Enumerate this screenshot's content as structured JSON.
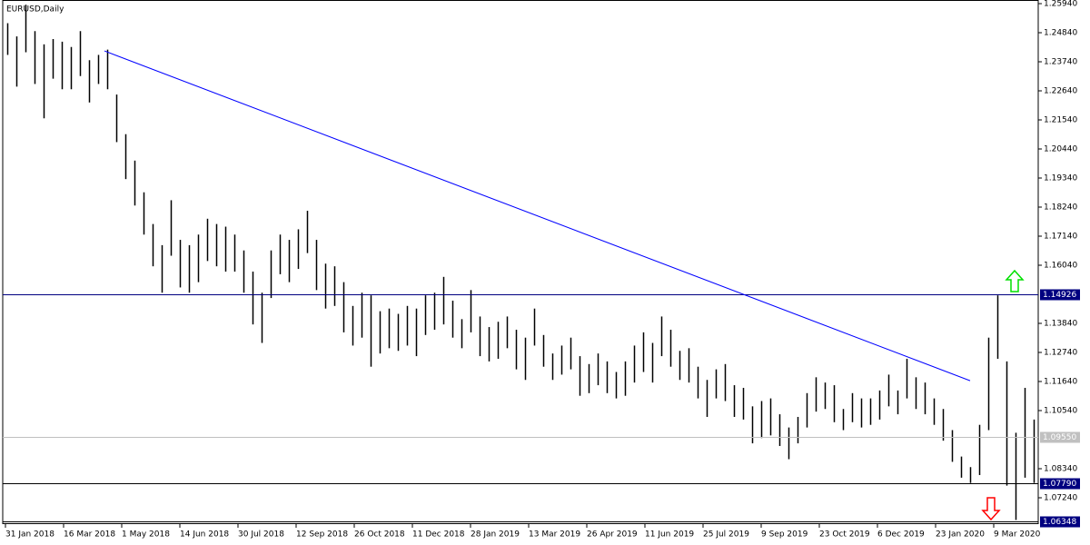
{
  "chart_data": {
    "type": "ohlc",
    "title": "EURUSD,Daily",
    "xlim": [
      0,
      114
    ],
    "xticks": [
      {
        "value": 0.3,
        "label": "31 Jan 2018"
      },
      {
        "value": 6.7,
        "label": "16 Mar 2018"
      },
      {
        "value": 13.1,
        "label": "1 May 2018"
      },
      {
        "value": 19.5,
        "label": "14 Jun 2018"
      },
      {
        "value": 25.9,
        "label": "30 Jul 2018"
      },
      {
        "value": 32.3,
        "label": "12 Sep 2018"
      },
      {
        "value": 38.7,
        "label": "26 Oct 2018"
      },
      {
        "value": 45.1,
        "label": "11 Dec 2018"
      },
      {
        "value": 51.5,
        "label": "28 Jan 2019"
      },
      {
        "value": 57.9,
        "label": "13 Mar 2019"
      },
      {
        "value": 64.3,
        "label": "26 Apr 2019"
      },
      {
        "value": 70.7,
        "label": "11 Jun 2019"
      },
      {
        "value": 77.1,
        "label": "25 Jul 2019"
      },
      {
        "value": 83.5,
        "label": "9 Sep 2019"
      },
      {
        "value": 89.9,
        "label": "23 Oct 2019"
      },
      {
        "value": 96.3,
        "label": "6 Dec 2019"
      },
      {
        "value": 102.7,
        "label": "23 Jan 2020"
      },
      {
        "value": 109.1,
        "label": "9 Mar 2020"
      }
    ],
    "ylim": [
      1.06243,
      1.26078
    ],
    "yticks": [
      {
        "value": 1.2594,
        "label": "1.25940"
      },
      {
        "value": 1.2484,
        "label": "1.24840"
      },
      {
        "value": 1.2374,
        "label": "1.23740"
      },
      {
        "value": 1.2264,
        "label": "1.22640"
      },
      {
        "value": 1.2154,
        "label": "1.21540"
      },
      {
        "value": 1.2044,
        "label": "1.20440"
      },
      {
        "value": 1.1934,
        "label": "1.19340"
      },
      {
        "value": 1.1824,
        "label": "1.18240"
      },
      {
        "value": 1.1714,
        "label": "1.17140"
      },
      {
        "value": 1.1604,
        "label": "1.16040"
      },
      {
        "value": 1.1384,
        "label": "1.13840"
      },
      {
        "value": 1.1274,
        "label": "1.12740"
      },
      {
        "value": 1.1164,
        "label": "1.11640"
      },
      {
        "value": 1.1054,
        "label": "1.10540"
      },
      {
        "value": 1.0834,
        "label": "1.08340"
      },
      {
        "value": 1.0724,
        "label": "1.07240"
      }
    ],
    "levels": [
      {
        "value": 1.14926,
        "label": "1.14926",
        "color": "#000080"
      },
      {
        "value": 1.0955,
        "label": "1.09550",
        "color": "#c0c0c0"
      },
      {
        "value": 1.0779,
        "label": "1.07790",
        "color": "#000080"
      },
      {
        "value": 1.06348,
        "label": "1.06348",
        "color": "#000080"
      }
    ],
    "trendline": {
      "x": [
        11.2,
        106.5
      ],
      "y": [
        1.2415,
        1.1167
      ],
      "color": "#0000ff"
    },
    "bar_color": "#000000",
    "high": [
      1.252,
      1.247,
      1.259,
      1.249,
      1.244,
      1.246,
      1.245,
      1.243,
      1.249,
      1.238,
      1.24,
      1.242,
      1.225,
      1.21,
      1.2,
      1.188,
      1.176,
      1.168,
      1.185,
      1.17,
      1.168,
      1.172,
      1.178,
      1.176,
      1.175,
      1.172,
      1.166,
      1.158,
      1.15,
      1.166,
      1.172,
      1.17,
      1.174,
      1.181,
      1.17,
      1.161,
      1.16,
      1.154,
      1.145,
      1.15,
      1.149,
      1.143,
      1.144,
      1.142,
      1.145,
      1.144,
      1.149,
      1.15,
      1.156,
      1.147,
      1.14,
      1.151,
      1.141,
      1.137,
      1.139,
      1.141,
      1.136,
      1.133,
      1.144,
      1.134,
      1.127,
      1.13,
      1.133,
      1.126,
      1.123,
      1.127,
      1.124,
      1.12,
      1.124,
      1.13,
      1.135,
      1.131,
      1.141,
      1.136,
      1.128,
      1.129,
      1.122,
      1.117,
      1.121,
      1.123,
      1.115,
      1.114,
      1.107,
      1.109,
      1.11,
      1.104,
      1.099,
      1.103,
      1.112,
      1.118,
      1.116,
      1.115,
      1.106,
      1.112,
      1.11,
      1.11,
      1.113,
      1.119,
      1.113,
      1.125,
      1.118,
      1.116,
      1.11,
      1.106,
      1.098,
      1.088,
      1.084,
      1.1,
      1.133,
      1.149,
      1.124,
      1.097,
      1.114,
      1.102
    ],
    "low": [
      1.24,
      1.228,
      1.241,
      1.229,
      1.216,
      1.231,
      1.227,
      1.227,
      1.232,
      1.222,
      1.229,
      1.227,
      1.207,
      1.193,
      1.183,
      1.172,
      1.16,
      1.15,
      1.164,
      1.152,
      1.15,
      1.154,
      1.162,
      1.16,
      1.158,
      1.158,
      1.15,
      1.138,
      1.131,
      1.148,
      1.157,
      1.154,
      1.159,
      1.165,
      1.151,
      1.144,
      1.145,
      1.135,
      1.13,
      1.133,
      1.122,
      1.127,
      1.129,
      1.128,
      1.13,
      1.126,
      1.134,
      1.136,
      1.138,
      1.133,
      1.129,
      1.135,
      1.126,
      1.124,
      1.125,
      1.129,
      1.121,
      1.117,
      1.13,
      1.122,
      1.117,
      1.119,
      1.121,
      1.111,
      1.112,
      1.115,
      1.112,
      1.11,
      1.111,
      1.116,
      1.12,
      1.116,
      1.126,
      1.122,
      1.117,
      1.116,
      1.11,
      1.103,
      1.11,
      1.109,
      1.103,
      1.102,
      1.093,
      1.095,
      1.096,
      1.092,
      1.087,
      1.093,
      1.099,
      1.105,
      1.106,
      1.101,
      1.098,
      1.101,
      1.099,
      1.1,
      1.102,
      1.107,
      1.104,
      1.11,
      1.106,
      1.104,
      1.1,
      1.094,
      1.086,
      1.08,
      1.078,
      1.081,
      1.098,
      1.125,
      1.077,
      1.064,
      1.08,
      1.078
    ]
  }
}
